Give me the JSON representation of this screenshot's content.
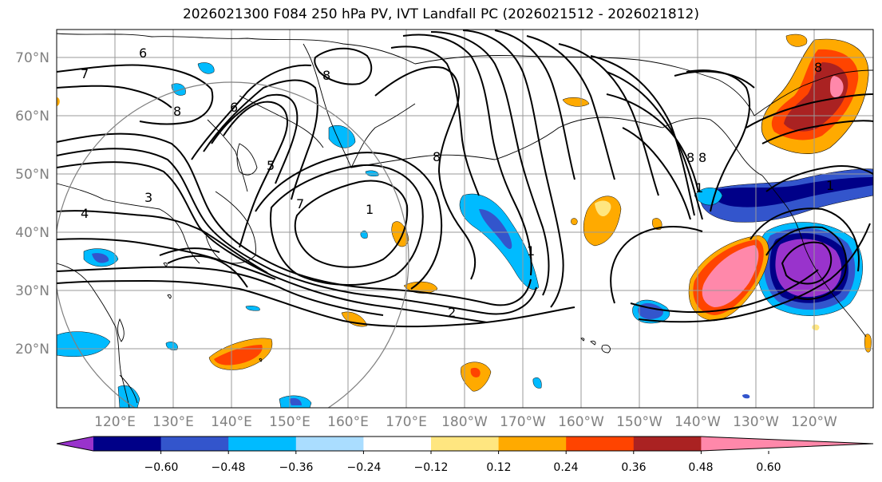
{
  "title": "2026021300 F084 250 hPa PV, IVT Landfall PC (2026021512 - 2026021812)",
  "map": {
    "lat_labels": [
      "70°N",
      "60°N",
      "50°N",
      "40°N",
      "30°N",
      "20°N"
    ],
    "lon_labels": [
      "120°E",
      "130°E",
      "140°E",
      "150°E",
      "160°E",
      "170°E",
      "180°W",
      "170°W",
      "160°W",
      "150°W",
      "140°W",
      "130°W",
      "120°W"
    ],
    "contour_labels": [
      "6",
      "7",
      "8",
      "8",
      "6",
      "5",
      "3",
      "4",
      "7",
      "1",
      "8",
      "8",
      "1",
      "2",
      "1",
      "8",
      "8",
      "1"
    ],
    "colors": {
      "land_outline": "#000000",
      "grid": "#999999",
      "circle": "#808080",
      "contour": "#000000"
    }
  },
  "colorbar": {
    "tick_labels": [
      "−0.60",
      "−0.48",
      "−0.36",
      "−0.24",
      "−0.12",
      "0.12",
      "0.24",
      "0.36",
      "0.48",
      "0.60"
    ],
    "colors": [
      "#9933cc",
      "#000088",
      "#3355cc",
      "#00bbff",
      "#aaddff",
      "#ffffff",
      "#ffe680",
      "#ffaa00",
      "#ff4400",
      "#aa2222",
      "#ff88aa"
    ]
  }
}
